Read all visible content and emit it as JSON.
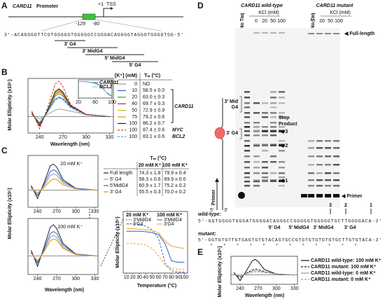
{
  "panel_a": {
    "label": "A",
    "gene": "CARD11",
    "title_rest": "Promoter",
    "tss_pos": "+1",
    "tss": "TSS",
    "pos1": "-129",
    "pos2": "-80",
    "sequence": "3'-ACAGGGGTTCGTGGGGGTGGGGGCCGGGACAGGGGTAGGGTGGGGTGG-5'",
    "regions": [
      "3' G4",
      "3' MidG4",
      "5' MidG4",
      "5' G4"
    ]
  },
  "panel_b": {
    "label": "B",
    "header_k": "[K⁺] (mM)",
    "header_tm": "Tₘ (°C)",
    "group_label": "CARD11",
    "chart": {
      "type": "line",
      "xlabel": "Wavelength (nm)",
      "ylabel": "Molar Ellipticity (x10⁵)",
      "xlim": [
        225,
        335
      ],
      "ylim": [
        -3,
        7
      ],
      "xticks": [
        240,
        270,
        300,
        330
      ],
      "x": [
        230,
        240,
        250,
        260,
        265,
        270,
        280,
        300,
        330
      ],
      "series": [
        {
          "k": 0,
          "tm": "ND",
          "color": "#9a9a9a",
          "values": [
            0.3,
            -0.4,
            0.4,
            1.2,
            1.4,
            1.3,
            1.0,
            0.4,
            0
          ]
        },
        {
          "k": 10,
          "tm": "58.5 ± 0.0",
          "color": "#2a63d4",
          "values": [
            0.5,
            -1.2,
            0.8,
            3.2,
            3.6,
            3.3,
            1.8,
            0.4,
            0
          ]
        },
        {
          "k": 20,
          "tm": "63.0 ± 0.3",
          "color": "#2aa12a",
          "values": [
            0.6,
            -1.4,
            0.9,
            3.8,
            4.2,
            3.8,
            1.9,
            0.4,
            0
          ]
        },
        {
          "k": 40,
          "tm": "69.7 ± 0.3",
          "color": "#e02020",
          "values": [
            0.6,
            -1.5,
            1.0,
            4.1,
            4.6,
            4.1,
            1.9,
            0.4,
            0
          ]
        },
        {
          "k": 50,
          "tm": "72.9 ± 0.9",
          "color": "#b8c800",
          "values": [
            0.7,
            -1.6,
            1.0,
            4.3,
            4.8,
            4.3,
            2.0,
            0.4,
            0
          ]
        },
        {
          "k": 75,
          "tm": "79.2 ± 0.6",
          "color": "#f08c00",
          "values": [
            0.7,
            -1.6,
            1.1,
            4.5,
            5.0,
            4.4,
            2.0,
            0.4,
            0
          ]
        },
        {
          "k": 100,
          "tm": "86.2 ± 0.7",
          "color": "#222222",
          "values": [
            0.8,
            -1.7,
            1.1,
            4.6,
            5.1,
            4.5,
            2.0,
            0.4,
            0
          ]
        },
        {
          "k": 100,
          "tm": "87.4 ± 0.6",
          "gene": "MYC",
          "color": "#e02020",
          "dash": true,
          "values": [
            1.0,
            -2.2,
            1.5,
            6.0,
            6.5,
            5.5,
            2.2,
            0.4,
            0
          ]
        },
        {
          "k": 100,
          "tm": "83.1 ± 0.6",
          "gene": "BCL2",
          "color": "#3a8fd8",
          "dash": true,
          "values": [
            0.4,
            -1.0,
            0.8,
            3.0,
            3.4,
            3.1,
            1.6,
            0.3,
            0
          ]
        }
      ]
    },
    "inset": {
      "type": "line",
      "xlim": [
        20,
        100
      ],
      "ylim": [
        0,
        1.1
      ],
      "xticks": [
        20,
        60,
        100
      ],
      "x": [
        20,
        30,
        40,
        50,
        60,
        70,
        80,
        90,
        100
      ],
      "series": [
        {
          "name": "CARD11",
          "color": "#2f7a70",
          "values": [
            1,
            1,
            0.98,
            0.95,
            0.9,
            0.8,
            0.55,
            0.25,
            0.1
          ]
        },
        {
          "name": "BCL2",
          "color": "#8fb8e0",
          "values": [
            1,
            0.99,
            0.97,
            0.93,
            0.87,
            0.75,
            0.5,
            0.3,
            0.15
          ]
        }
      ]
    }
  },
  "panel_c": {
    "label": "C",
    "xlabel": "Wavelength (nm)",
    "ylabel": "Molar Ellipticity (x10⁵)",
    "chart_20": {
      "type": "line",
      "annotation": "20 mM K⁺",
      "xlim": [
        225,
        335
      ],
      "ylim": [
        -3,
        6
      ],
      "xticks": [
        240,
        270,
        300,
        330
      ],
      "x": [
        230,
        240,
        250,
        260,
        265,
        270,
        280,
        300,
        330
      ],
      "series": [
        {
          "color": "#222222",
          "values": [
            0.8,
            -1.5,
            1.2,
            4.2,
            4.5,
            4.0,
            1.8,
            0.3,
            0
          ]
        },
        {
          "color": "#9a9a9a",
          "values": [
            0.4,
            -0.8,
            0.6,
            2.5,
            2.8,
            2.6,
            1.2,
            0.3,
            0
          ]
        },
        {
          "color": "#2a63d4",
          "values": [
            0.5,
            -1.0,
            0.9,
            3.2,
            3.5,
            3.2,
            1.5,
            0.3,
            0
          ]
        },
        {
          "color": "#f08c00",
          "values": [
            0.3,
            -0.5,
            0.4,
            1.6,
            1.9,
            1.8,
            0.9,
            0.2,
            0
          ]
        }
      ]
    },
    "chart_100": {
      "type": "line",
      "annotation": "100 mM K⁺",
      "xlim": [
        225,
        335
      ],
      "ylim": [
        -3,
        6
      ],
      "xticks": [
        240,
        270,
        300,
        330
      ],
      "x": [
        230,
        240,
        250,
        260,
        265,
        270,
        280,
        300,
        330
      ],
      "series": [
        {
          "color": "#222222",
          "values": [
            0.9,
            -1.7,
            1.3,
            4.6,
            5.0,
            4.4,
            2.0,
            0.3,
            0
          ]
        },
        {
          "color": "#9a9a9a",
          "values": [
            0.5,
            -1.0,
            0.8,
            3.0,
            3.3,
            3.0,
            1.4,
            0.3,
            0
          ]
        },
        {
          "color": "#2a63d4",
          "values": [
            0.6,
            -1.2,
            1.0,
            3.6,
            3.9,
            3.6,
            1.7,
            0.3,
            0
          ]
        },
        {
          "color": "#f08c00",
          "values": [
            0.4,
            -0.8,
            0.6,
            2.4,
            2.7,
            2.5,
            1.2,
            0.2,
            0
          ]
        }
      ]
    },
    "table": {
      "header": "Tₘ (°C)",
      "col1": "20 mM K⁺",
      "col2": "100 mM K⁺",
      "rows": [
        {
          "name": "Full length",
          "tm20": "74.3 ± 1.8",
          "tm100": "79.9 ± 0.4"
        },
        {
          "name": "5' G4",
          "tm20": "58.3 ± 0.6",
          "tm100": "69.9 ± 0.0"
        },
        {
          "name": "5'MidG4",
          "tm20": "60.9 ± 1.7",
          "tm100": "75.2 ± 0.2"
        },
        {
          "name": "3' G4",
          "tm20": "55.5 ± 0.3",
          "tm100": "70.0 ± 0.2"
        }
      ]
    },
    "melt": {
      "type": "line",
      "xlabel": "Temperature (°C)",
      "ylabel": "Molar Ellipticity (x10⁵)",
      "legend_titles": [
        "20 mM K⁺",
        "100 mM K⁺"
      ],
      "xlim": [
        5,
        105
      ],
      "ylim": [
        0,
        1.25
      ],
      "xticks": [
        10,
        20,
        30,
        40,
        50,
        60,
        70,
        80,
        90,
        100
      ],
      "x": [
        10,
        20,
        30,
        40,
        50,
        60,
        70,
        80,
        90,
        100
      ],
      "series": [
        {
          "name": "3'MidG4",
          "group": 0,
          "color": "#2a63d4",
          "dash": true,
          "values": [
            1,
            1,
            0.98,
            0.95,
            0.88,
            0.7,
            0.2,
            0.05,
            0.02,
            0.02
          ]
        },
        {
          "name": "3'G4",
          "group": 0,
          "color": "#f0a020",
          "dash": true,
          "values": [
            0.6,
            0.6,
            0.59,
            0.57,
            0.5,
            0.35,
            0.15,
            0.1,
            0.08,
            0.08
          ]
        },
        {
          "name": "3'MidG4",
          "group": 1,
          "color": "#2a63d4",
          "values": [
            0.85,
            0.85,
            0.85,
            0.84,
            0.82,
            0.78,
            0.6,
            0.25,
            0.22,
            0.22
          ]
        },
        {
          "name": "3'G4",
          "group": 1,
          "color": "#f0a020",
          "values": [
            0.9,
            0.9,
            0.89,
            0.88,
            0.86,
            0.82,
            0.65,
            0.55,
            0.52,
            0.5
          ]
        }
      ]
    }
  },
  "panel_d": {
    "label": "D",
    "wt_title": "CARD11 wild-type",
    "mut_title": "CARD11 mutant",
    "no_taq": "No Taq",
    "kcl": "KCl (mM)",
    "kcl_values": [
      0,
      20,
      50,
      100
    ],
    "full_length": "Full-length",
    "primer": "Primer",
    "mid_g4": [
      "3' Mid",
      "G4"
    ],
    "g4": "3' G4",
    "stop": [
      "Stop",
      "Product"
    ],
    "stops": [
      "3",
      "2",
      "1"
    ],
    "schematic_primer": "Primer",
    "five": "5'",
    "three": "3'",
    "wt_label": "wild-type:",
    "wt_seq": "5'-GGTGGGGTGGGATGGGGACAGGGCCGGGGGTGGGGGTGCTTGGGGACA-3'",
    "seq_regions": [
      "5' G4",
      "5' MidG4",
      "3' MidG4",
      "3' G4"
    ],
    "mut_label": "mutant:",
    "mut_seq": "5'-GGTGTGTTGTGAGTGTGTACAGTGCCGTGTGTGTGTGTGCTTGTGTACA-3'",
    "stars": "*    *  *    *   *  *   *   *  *  *  *   *"
  },
  "panel_e": {
    "label": "E",
    "chart": {
      "type": "line",
      "xlabel": "Wavelength (nm)",
      "ylabel": "Molar Ellipticity (x10⁵)",
      "xlim": [
        225,
        335
      ],
      "ylim": [
        -3,
        6
      ],
      "xticks": [
        240,
        270,
        300,
        330
      ],
      "x": [
        230,
        240,
        250,
        260,
        265,
        270,
        280,
        300,
        330
      ],
      "series": [
        {
          "name": "CARD11 wild-type: 100 mM K⁺",
          "color": "#111111",
          "values": [
            0.8,
            -1.8,
            1.2,
            4.5,
            5.0,
            4.3,
            1.8,
            0.3,
            0
          ]
        },
        {
          "name": "CARD11 mutant: 100 mM K⁺",
          "color": "#111111",
          "dash": true,
          "values": [
            0.3,
            -0.8,
            0.5,
            1.6,
            1.9,
            1.8,
            1.1,
            0.3,
            0
          ]
        },
        {
          "name": "CARD11 wild-type: 0 mM K⁺",
          "color": "#999999",
          "values": [
            0.3,
            -0.5,
            0.4,
            1.2,
            1.4,
            1.3,
            1.0,
            0.3,
            0
          ]
        },
        {
          "name": "CARD11 mutant: 0 mM K⁺",
          "color": "#999999",
          "dash": true,
          "values": [
            0.2,
            -0.4,
            0.3,
            0.9,
            1.0,
            1.0,
            0.8,
            0.2,
            0
          ]
        }
      ]
    }
  }
}
